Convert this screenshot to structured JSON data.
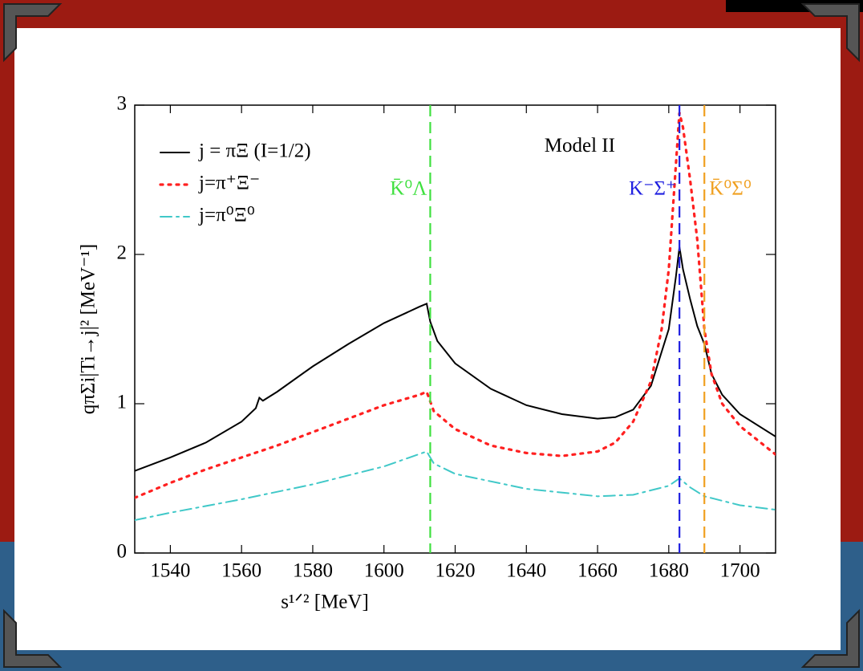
{
  "chart_data": {
    "type": "line",
    "xlabel": "s¹ᐟ² [MeV]",
    "ylabel": "qπΣi|Ti→j|²  [MeV⁻¹]",
    "xlim": [
      1530,
      1710
    ],
    "ylim": [
      0,
      3
    ],
    "xticks": [
      1540,
      1560,
      1580,
      1600,
      1620,
      1640,
      1660,
      1680,
      1700
    ],
    "yticks": [
      0,
      1,
      2,
      3
    ],
    "legend": "upper left",
    "series": [
      {
        "name": "j = πΞ (I=1/2)",
        "color": "#000000",
        "style": "solid",
        "x": [
          1530,
          1540,
          1550,
          1560,
          1564,
          1565,
          1566,
          1570,
          1580,
          1590,
          1600,
          1610,
          1612,
          1613,
          1615,
          1620,
          1630,
          1640,
          1650,
          1660,
          1665,
          1670,
          1675,
          1680,
          1682,
          1683,
          1684,
          1686,
          1688,
          1690,
          1692,
          1695,
          1700,
          1710
        ],
        "values": [
          0.55,
          0.64,
          0.74,
          0.88,
          0.97,
          1.04,
          1.02,
          1.08,
          1.25,
          1.4,
          1.54,
          1.65,
          1.67,
          1.55,
          1.42,
          1.27,
          1.1,
          0.99,
          0.93,
          0.9,
          0.91,
          0.96,
          1.12,
          1.5,
          1.85,
          2.05,
          1.9,
          1.7,
          1.52,
          1.4,
          1.2,
          1.06,
          0.93,
          0.78
        ]
      },
      {
        "name": "j=π⁺Ξ⁻",
        "color": "#ff2020",
        "style": "dotted",
        "x": [
          1530,
          1540,
          1550,
          1560,
          1570,
          1580,
          1590,
          1600,
          1610,
          1612,
          1614,
          1620,
          1630,
          1640,
          1650,
          1660,
          1665,
          1670,
          1675,
          1678,
          1680,
          1682,
          1683,
          1684,
          1686,
          1688,
          1690,
          1692,
          1695,
          1700,
          1710
        ],
        "values": [
          0.37,
          0.47,
          0.56,
          0.64,
          0.72,
          0.81,
          0.9,
          0.99,
          1.06,
          1.08,
          0.95,
          0.83,
          0.72,
          0.67,
          0.65,
          0.68,
          0.74,
          0.88,
          1.15,
          1.5,
          1.9,
          2.6,
          2.95,
          2.85,
          2.5,
          2.1,
          1.5,
          1.2,
          1.0,
          0.85,
          0.66
        ]
      },
      {
        "name": "j=π⁰Ξ⁰",
        "color": "#40c8c8",
        "style": "dashdot",
        "x": [
          1530,
          1540,
          1560,
          1580,
          1600,
          1612,
          1614,
          1620,
          1640,
          1660,
          1670,
          1680,
          1683,
          1686,
          1690,
          1700,
          1710
        ],
        "values": [
          0.22,
          0.27,
          0.36,
          0.46,
          0.58,
          0.68,
          0.6,
          0.53,
          0.43,
          0.38,
          0.39,
          0.45,
          0.5,
          0.44,
          0.38,
          0.32,
          0.29
        ]
      }
    ],
    "annotations": [
      {
        "text": "Model II",
        "x": 1655,
        "y": 2.72
      },
      {
        "text": "K̄⁰Λ",
        "x": 1613,
        "color": "#40e040"
      },
      {
        "text": "K⁻Σ⁺",
        "x": 1683,
        "color": "#2020e0"
      },
      {
        "text": "K̄⁰Σ⁰",
        "x": 1690,
        "color": "#f0a020"
      }
    ]
  }
}
